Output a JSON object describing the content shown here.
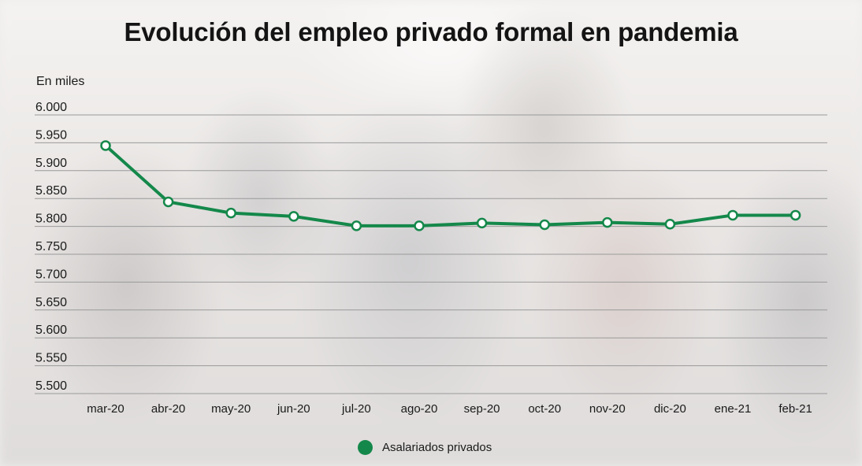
{
  "title": "Evolución del empleo privado formal en pandemia",
  "unit_label": "En miles",
  "colors": {
    "series": "#14884a",
    "grid": "#9a9a9a",
    "text": "#1a1a1a"
  },
  "legend": {
    "label": "Asalariados privados"
  },
  "chart_data": {
    "type": "line",
    "title": "Evolución del empleo privado formal en pandemia",
    "ylabel": "En miles",
    "xlabel": "",
    "ylim": [
      5500,
      6000
    ],
    "yticks": [
      {
        "value": 6000,
        "label": "6.000"
      },
      {
        "value": 5950,
        "label": "5.950"
      },
      {
        "value": 5900,
        "label": "5.900"
      },
      {
        "value": 5850,
        "label": "5.850"
      },
      {
        "value": 5800,
        "label": "5.800"
      },
      {
        "value": 5750,
        "label": "5.750"
      },
      {
        "value": 5700,
        "label": "5.700"
      },
      {
        "value": 5650,
        "label": "5.650"
      },
      {
        "value": 5600,
        "label": "5.600"
      },
      {
        "value": 5550,
        "label": "5.550"
      },
      {
        "value": 5500,
        "label": "5.500"
      }
    ],
    "categories": [
      "mar-20",
      "abr-20",
      "may-20",
      "jun-20",
      "jul-20",
      "ago-20",
      "sep-20",
      "oct-20",
      "nov-20",
      "dic-20",
      "ene-21",
      "feb-21"
    ],
    "series": [
      {
        "name": "Asalariados privados",
        "values": [
          5945,
          5844,
          5824,
          5818,
          5801,
          5801,
          5806,
          5803,
          5807,
          5804,
          5820,
          5820
        ]
      }
    ],
    "grid": true,
    "legend_position": "bottom"
  }
}
